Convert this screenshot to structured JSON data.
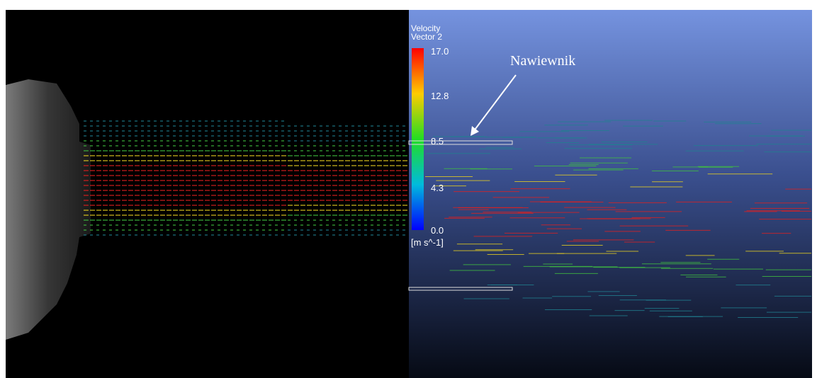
{
  "legend": {
    "title": "Velocity",
    "subtitle": "Vector 2",
    "ticks": [
      "17.0",
      "12.8",
      "8.5",
      "4.3",
      "0.0"
    ],
    "unit": "[m s^-1]"
  },
  "annotation": "Nawiewnik"
}
